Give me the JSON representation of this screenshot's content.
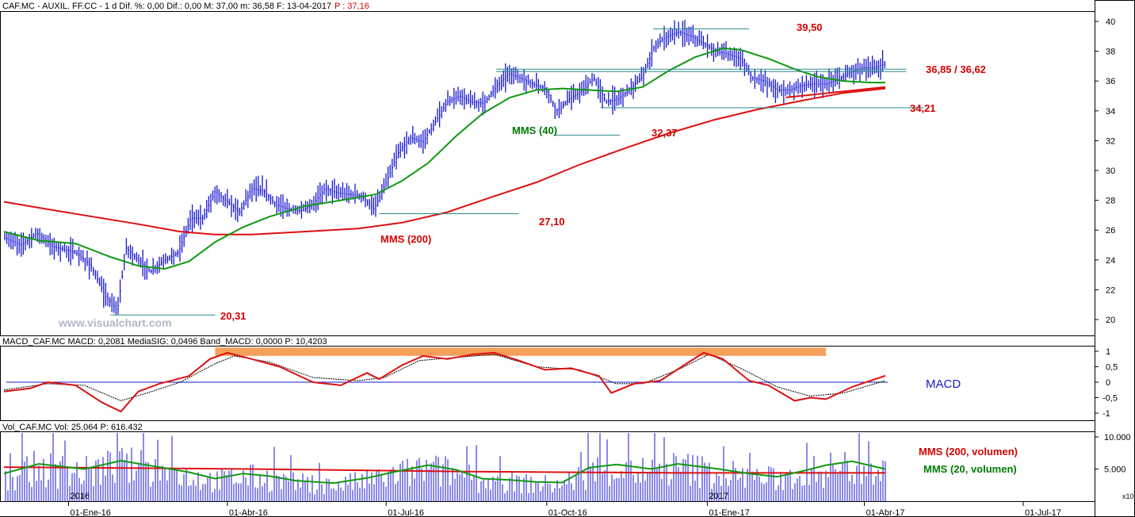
{
  "header": {
    "price_title": "CAF.MC - AUXIL. FF.CC - 1 d Dif. %: 0,00 Dif.: 0,00 M: 37,00 m: 36,58 F: 13-04-2017",
    "price_last": "P : 37,16",
    "macd_title": "MACD_CAF.MC MACD: 0,2081 MediaSIG: 0,0496 Band_MACD: 0,0000 P: 10,4203",
    "vol_title": "Vol_CAF.MC Vol: 25.064 P: 616.432"
  },
  "watermark": "www.visualchart.com",
  "colors": {
    "price_bars": "#1515d0",
    "mms40": "#119911",
    "mms200": "#dd1111",
    "lines": "#2a8a8a",
    "macd": "#dd1111",
    "macd_signal": "#000000",
    "macd_band": "#f5a05a",
    "volume": "#1515d0"
  },
  "chart_data": [
    {
      "type": "bar",
      "title": "CAF.MC - AUXIL. FF.CC - 1 d",
      "y_ticks": [
        "20",
        "22",
        "24",
        "26",
        "28",
        "30",
        "32",
        "34",
        "36",
        "38",
        "40"
      ],
      "ylim": [
        19.2,
        40.6
      ],
      "x_tick_labels": [
        "01-Ene-16",
        "01-Abr-16",
        "01-Jul-16",
        "01-Oct-16",
        "01-Ene-17",
        "01-Abr-17",
        "01-Jul-17"
      ],
      "year_labels": [
        "2016",
        "2017"
      ],
      "price_points": [
        [
          "2015-11-25",
          25.5
        ],
        [
          "2015-12-05",
          25.0
        ],
        [
          "2015-12-14",
          25.8
        ],
        [
          "2015-12-23",
          24.9
        ],
        [
          "2016-01-05",
          24.5
        ],
        [
          "2016-01-14",
          23.6
        ],
        [
          "2016-01-22",
          21.6
        ],
        [
          "2016-01-29",
          20.6
        ],
        [
          "2016-02-03",
          24.8
        ],
        [
          "2016-02-10",
          24.0
        ],
        [
          "2016-02-17",
          23.2
        ],
        [
          "2016-02-24",
          23.9
        ],
        [
          "2016-03-04",
          24.5
        ],
        [
          "2016-03-11",
          26.8
        ],
        [
          "2016-03-18",
          26.8
        ],
        [
          "2016-03-25",
          28.6
        ],
        [
          "2016-04-01",
          27.9
        ],
        [
          "2016-04-08",
          27.2
        ],
        [
          "2016-04-15",
          28.8
        ],
        [
          "2016-04-22",
          28.6
        ],
        [
          "2016-04-29",
          27.7
        ],
        [
          "2016-05-06",
          27.4
        ],
        [
          "2016-05-13",
          27.3
        ],
        [
          "2016-05-20",
          27.7
        ],
        [
          "2016-05-27",
          28.8
        ],
        [
          "2016-06-03",
          28.5
        ],
        [
          "2016-06-10",
          28.4
        ],
        [
          "2016-06-17",
          28.3
        ],
        [
          "2016-06-24",
          27.4
        ],
        [
          "2016-07-01",
          29.2
        ],
        [
          "2016-07-08",
          31.2
        ],
        [
          "2016-07-15",
          32.2
        ],
        [
          "2016-07-22",
          31.9
        ],
        [
          "2016-07-29",
          33.2
        ],
        [
          "2016-08-05",
          34.6
        ],
        [
          "2016-08-12",
          35.0
        ],
        [
          "2016-08-19",
          34.6
        ],
        [
          "2016-08-26",
          34.5
        ],
        [
          "2016-09-02",
          35.6
        ],
        [
          "2016-09-09",
          36.5
        ],
        [
          "2016-09-16",
          36.2
        ],
        [
          "2016-09-23",
          35.8
        ],
        [
          "2016-09-30",
          35.5
        ],
        [
          "2016-10-07",
          34.0
        ],
        [
          "2016-10-14",
          34.8
        ],
        [
          "2016-10-21",
          35.3
        ],
        [
          "2016-10-28",
          36.2
        ],
        [
          "2016-11-04",
          34.6
        ],
        [
          "2016-11-11",
          34.8
        ],
        [
          "2016-11-18",
          35.5
        ],
        [
          "2016-11-25",
          36.3
        ],
        [
          "2016-12-02",
          38.4
        ],
        [
          "2016-12-09",
          39.0
        ],
        [
          "2016-12-16",
          39.3
        ],
        [
          "2016-12-23",
          39.0
        ],
        [
          "2016-12-30",
          38.5
        ],
        [
          "2017-01-06",
          38.0
        ],
        [
          "2017-01-13",
          37.8
        ],
        [
          "2017-01-20",
          37.5
        ],
        [
          "2017-01-27",
          36.2
        ],
        [
          "2017-02-03",
          36.0
        ],
        [
          "2017-02-10",
          35.4
        ],
        [
          "2017-02-17",
          35.4
        ],
        [
          "2017-02-24",
          35.7
        ],
        [
          "2017-03-03",
          35.8
        ],
        [
          "2017-03-10",
          35.8
        ],
        [
          "2017-03-17",
          36.1
        ],
        [
          "2017-03-24",
          36.6
        ],
        [
          "2017-03-31",
          36.9
        ],
        [
          "2017-04-07",
          36.9
        ],
        [
          "2017-04-13",
          37.16
        ]
      ],
      "series": [
        {
          "name": "MMS (40)",
          "points": [
            [
              "2015-11-25",
              25.9
            ],
            [
              "2015-12-15",
              25.3
            ],
            [
              "2016-01-05",
              25.1
            ],
            [
              "2016-01-25",
              24.2
            ],
            [
              "2016-02-10",
              23.6
            ],
            [
              "2016-02-25",
              23.4
            ],
            [
              "2016-03-10",
              23.9
            ],
            [
              "2016-03-25",
              25.2
            ],
            [
              "2016-04-10",
              26.2
            ],
            [
              "2016-04-25",
              26.9
            ],
            [
              "2016-05-15",
              27.6
            ],
            [
              "2016-06-05",
              28.0
            ],
            [
              "2016-06-25",
              28.4
            ],
            [
              "2016-07-10",
              29.3
            ],
            [
              "2016-07-25",
              30.5
            ],
            [
              "2016-08-10",
              32.3
            ],
            [
              "2016-08-25",
              33.8
            ],
            [
              "2016-09-10",
              34.9
            ],
            [
              "2016-09-25",
              35.4
            ],
            [
              "2016-10-10",
              35.5
            ],
            [
              "2016-10-25",
              35.4
            ],
            [
              "2016-11-10",
              35.3
            ],
            [
              "2016-11-25",
              35.6
            ],
            [
              "2016-12-10",
              36.7
            ],
            [
              "2016-12-25",
              37.6
            ],
            [
              "2017-01-10",
              38.2
            ],
            [
              "2017-01-20",
              38.1
            ],
            [
              "2017-02-05",
              37.5
            ],
            [
              "2017-02-20",
              36.8
            ],
            [
              "2017-03-05",
              36.3
            ],
            [
              "2017-03-20",
              36.0
            ],
            [
              "2017-04-05",
              35.9
            ],
            [
              "2017-04-13",
              35.9
            ]
          ]
        },
        {
          "name": "MMS (200)",
          "points": [
            [
              "2015-11-25",
              27.9
            ],
            [
              "2015-12-20",
              27.4
            ],
            [
              "2016-01-15",
              26.9
            ],
            [
              "2016-02-10",
              26.4
            ],
            [
              "2016-03-05",
              25.9
            ],
            [
              "2016-03-25",
              25.7
            ],
            [
              "2016-04-15",
              25.7
            ],
            [
              "2016-05-15",
              25.9
            ],
            [
              "2016-06-15",
              26.1
            ],
            [
              "2016-07-10",
              26.5
            ],
            [
              "2016-08-05",
              27.2
            ],
            [
              "2016-08-30",
              28.2
            ],
            [
              "2016-09-25",
              29.2
            ],
            [
              "2016-10-20",
              30.4
            ],
            [
              "2016-11-15",
              31.5
            ],
            [
              "2016-12-10",
              32.5
            ],
            [
              "2017-01-05",
              33.4
            ],
            [
              "2017-01-30",
              34.1
            ],
            [
              "2017-02-25",
              34.7
            ],
            [
              "2017-03-20",
              35.2
            ],
            [
              "2017-04-13",
              35.5
            ]
          ]
        }
      ],
      "levels": [
        {
          "label": "39,50",
          "value": 39.5,
          "from": "2016-12-01",
          "to": "2017-01-25"
        },
        {
          "label": "36,85 / 36,62",
          "value": 36.8,
          "from": "2016-09-02",
          "to": "2017-04-25"
        },
        {
          "label": "34,21",
          "value": 34.21,
          "from": "2016-11-01",
          "to": "2017-05-05"
        },
        {
          "label": "32,37",
          "value": 32.37,
          "from": "2016-10-05",
          "to": "2016-11-12"
        },
        {
          "label": "27,10",
          "value": 27.1,
          "from": "2016-06-27",
          "to": "2016-09-15"
        },
        {
          "label": "20,31",
          "value": 20.31,
          "from": "2016-01-25",
          "to": "2016-03-25"
        }
      ],
      "annotations": [
        "MMS (40)",
        "MMS (200)"
      ]
    },
    {
      "type": "line",
      "title": "MACD",
      "y_ticks": [
        "1",
        "0,5",
        "0",
        "-0,5",
        "-1"
      ],
      "ylim": [
        -1.2,
        1.2
      ],
      "series": [
        {
          "name": "MACD",
          "points": [
            [
              "2015-11-25",
              -0.3
            ],
            [
              "2015-12-10",
              -0.2
            ],
            [
              "2015-12-20",
              0.0
            ],
            [
              "2016-01-05",
              -0.1
            ],
            [
              "2016-01-20",
              -0.65
            ],
            [
              "2016-01-31",
              -0.95
            ],
            [
              "2016-02-10",
              -0.3
            ],
            [
              "2016-02-22",
              -0.05
            ],
            [
              "2016-03-10",
              0.2
            ],
            [
              "2016-03-22",
              0.75
            ],
            [
              "2016-04-01",
              0.95
            ],
            [
              "2016-04-15",
              0.75
            ],
            [
              "2016-05-01",
              0.5
            ],
            [
              "2016-05-20",
              0.0
            ],
            [
              "2016-06-05",
              -0.1
            ],
            [
              "2016-06-20",
              0.3
            ],
            [
              "2016-06-27",
              0.1
            ],
            [
              "2016-07-10",
              0.55
            ],
            [
              "2016-07-22",
              0.85
            ],
            [
              "2016-08-05",
              0.75
            ],
            [
              "2016-08-20",
              0.9
            ],
            [
              "2016-09-01",
              0.95
            ],
            [
              "2016-09-15",
              0.7
            ],
            [
              "2016-09-30",
              0.4
            ],
            [
              "2016-10-15",
              0.45
            ],
            [
              "2016-10-31",
              0.2
            ],
            [
              "2016-11-07",
              -0.35
            ],
            [
              "2016-11-20",
              -0.05
            ],
            [
              "2016-12-05",
              0.05
            ],
            [
              "2016-12-20",
              0.6
            ],
            [
              "2016-12-30",
              0.95
            ],
            [
              "2017-01-10",
              0.75
            ],
            [
              "2017-01-25",
              0.05
            ],
            [
              "2017-02-05",
              -0.1
            ],
            [
              "2017-02-20",
              -0.6
            ],
            [
              "2017-03-01",
              -0.5
            ],
            [
              "2017-03-10",
              -0.55
            ],
            [
              "2017-03-25",
              -0.15
            ],
            [
              "2017-04-13",
              0.21
            ]
          ]
        },
        {
          "name": "MediaSIG",
          "points": [
            [
              "2015-11-25",
              -0.25
            ],
            [
              "2015-12-20",
              -0.05
            ],
            [
              "2016-01-10",
              -0.1
            ],
            [
              "2016-01-31",
              -0.6
            ],
            [
              "2016-02-15",
              -0.35
            ],
            [
              "2016-03-05",
              0.0
            ],
            [
              "2016-03-25",
              0.6
            ],
            [
              "2016-04-05",
              0.85
            ],
            [
              "2016-04-25",
              0.65
            ],
            [
              "2016-05-20",
              0.15
            ],
            [
              "2016-06-15",
              0.05
            ],
            [
              "2016-06-30",
              0.15
            ],
            [
              "2016-07-20",
              0.7
            ],
            [
              "2016-08-10",
              0.8
            ],
            [
              "2016-09-01",
              0.9
            ],
            [
              "2016-09-25",
              0.5
            ],
            [
              "2016-10-20",
              0.4
            ],
            [
              "2016-11-10",
              -0.05
            ],
            [
              "2016-11-25",
              -0.05
            ],
            [
              "2016-12-15",
              0.4
            ],
            [
              "2017-01-02",
              0.9
            ],
            [
              "2017-01-20",
              0.45
            ],
            [
              "2017-02-10",
              -0.15
            ],
            [
              "2017-03-01",
              -0.45
            ],
            [
              "2017-03-20",
              -0.35
            ],
            [
              "2017-04-13",
              0.05
            ]
          ]
        }
      ],
      "band": {
        "from": "2016-03-25",
        "to": "2017-03-10",
        "low": 0.85,
        "high": 1.12
      },
      "label": "MACD"
    },
    {
      "type": "bar",
      "title": "Vol_CAF.MC",
      "y_ticks": [
        "10.000",
        "5.000"
      ],
      "ylim": [
        0,
        10800
      ],
      "scale_note": "x10",
      "series": [
        {
          "name": "MMS (200, volumen)",
          "points": [
            [
              "2015-11-25",
              5300
            ],
            [
              "2016-04-15",
              5000
            ],
            [
              "2016-08-15",
              4600
            ],
            [
              "2016-12-15",
              4400
            ],
            [
              "2017-04-13",
              4400
            ]
          ]
        },
        {
          "name": "MMS (20, volumen)",
          "points": [
            [
              "2015-11-25",
              4300
            ],
            [
              "2015-12-15",
              5800
            ],
            [
              "2016-01-10",
              5000
            ],
            [
              "2016-01-31",
              6300
            ],
            [
              "2016-02-20",
              5400
            ],
            [
              "2016-03-10",
              4500
            ],
            [
              "2016-03-25",
              3500
            ],
            [
              "2016-04-10",
              4300
            ],
            [
              "2016-04-25",
              3900
            ],
            [
              "2016-05-10",
              3200
            ],
            [
              "2016-06-01",
              2800
            ],
            [
              "2016-06-20",
              3600
            ],
            [
              "2016-07-05",
              4500
            ],
            [
              "2016-07-25",
              5600
            ],
            [
              "2016-08-10",
              4900
            ],
            [
              "2016-08-25",
              3500
            ],
            [
              "2016-09-10",
              3300
            ],
            [
              "2016-09-25",
              3000
            ],
            [
              "2016-10-10",
              2900
            ],
            [
              "2016-10-25",
              5200
            ],
            [
              "2016-11-10",
              5700
            ],
            [
              "2016-11-30",
              5000
            ],
            [
              "2016-12-15",
              5800
            ],
            [
              "2017-01-05",
              5100
            ],
            [
              "2017-01-25",
              4300
            ],
            [
              "2017-02-10",
              3800
            ],
            [
              "2017-02-25",
              4700
            ],
            [
              "2017-03-10",
              5600
            ],
            [
              "2017-03-25",
              6200
            ],
            [
              "2017-04-13",
              5000
            ]
          ]
        }
      ]
    }
  ]
}
